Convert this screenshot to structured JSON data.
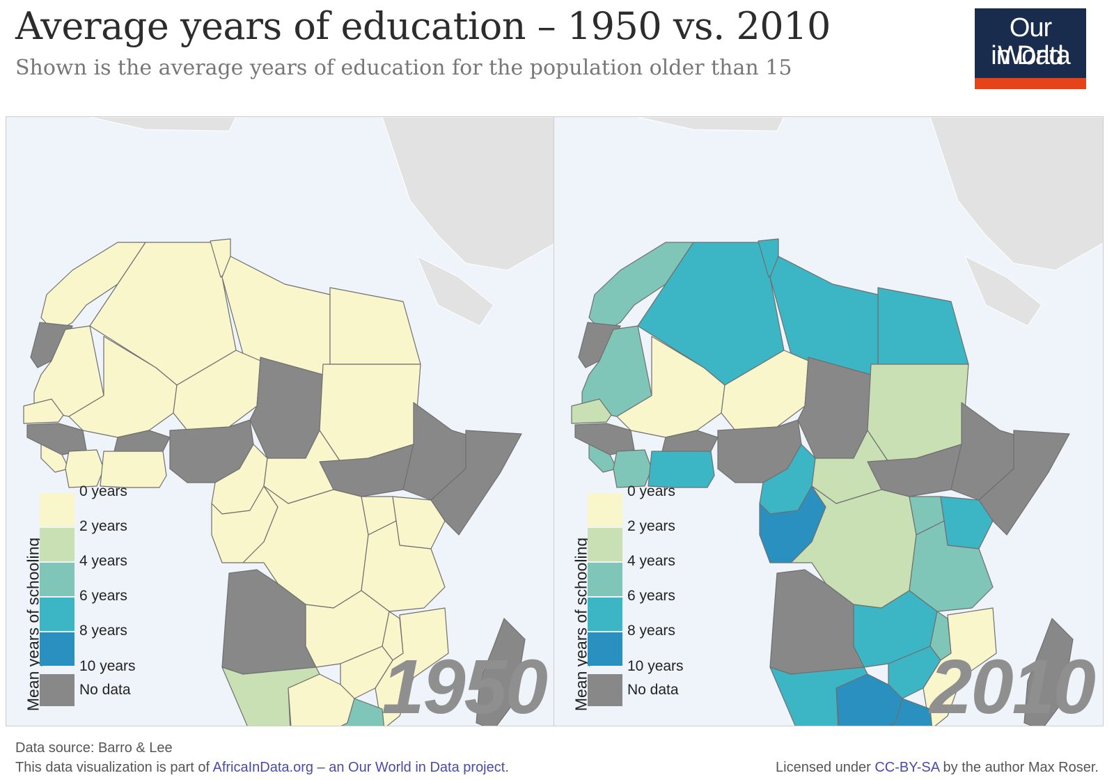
{
  "header": {
    "title": "Average years of education – 1950 vs. 2010",
    "subtitle": "Shown is the average years of education for the population older than 15"
  },
  "logo": {
    "line1": "Our World",
    "line2": "in Data"
  },
  "legend": {
    "title": "Mean years of schooling",
    "bins": [
      {
        "label": "0 years",
        "color": "#faf6cc"
      },
      {
        "label": "2 years",
        "color": "#c9e0b4"
      },
      {
        "label": "4 years",
        "color": "#80c6b8"
      },
      {
        "label": "6 years",
        "color": "#3cb5c4"
      },
      {
        "label": "8 years",
        "color": "#2a90c0"
      },
      {
        "label": "10 years"
      }
    ],
    "no_data": {
      "label": "No data",
      "color": "#888888"
    }
  },
  "maps": [
    {
      "year": "1950"
    },
    {
      "year": "2010"
    }
  ],
  "footer": {
    "source": "Data source: Barro & Lee",
    "left_prefix": "This data visualization is part of ",
    "left_link": "AfricaInData.org – an Our World in Data project",
    "left_suffix": ".",
    "right_prefix": "Licensed under ",
    "right_link": "CC-BY-SA",
    "right_suffix": " by the author Max Roser."
  }
}
